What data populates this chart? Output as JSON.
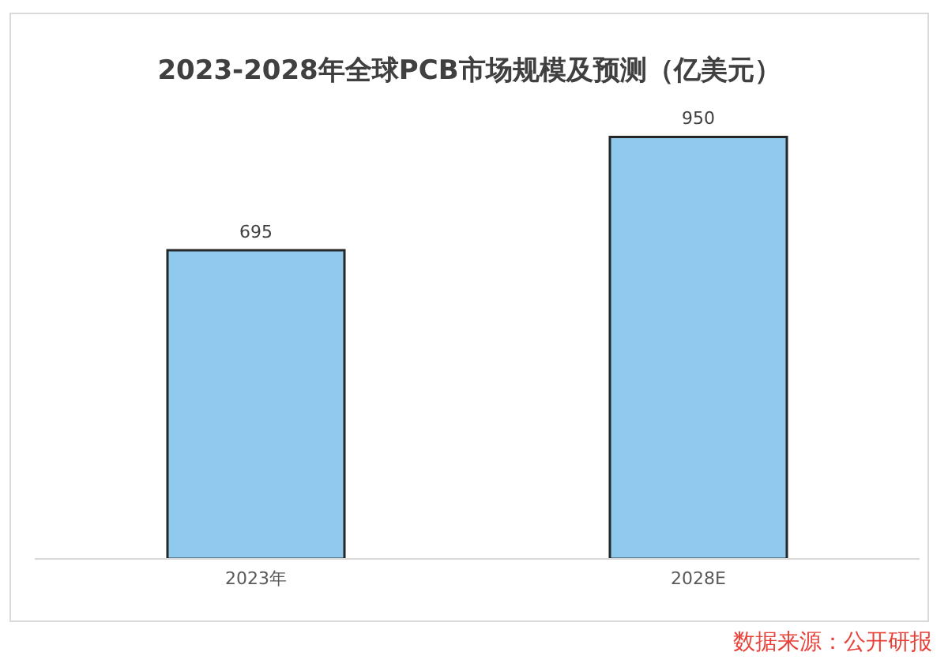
{
  "chart_data": {
    "type": "bar",
    "title": "2023-2028年全球PCB市场规模及预测（亿美元）",
    "categories": [
      "2023年",
      "2028E"
    ],
    "values": [
      695,
      950
    ],
    "color": "#8fcaee",
    "data_labels": true,
    "annotations": [
      "数据来源：公开研报"
    ]
  }
}
